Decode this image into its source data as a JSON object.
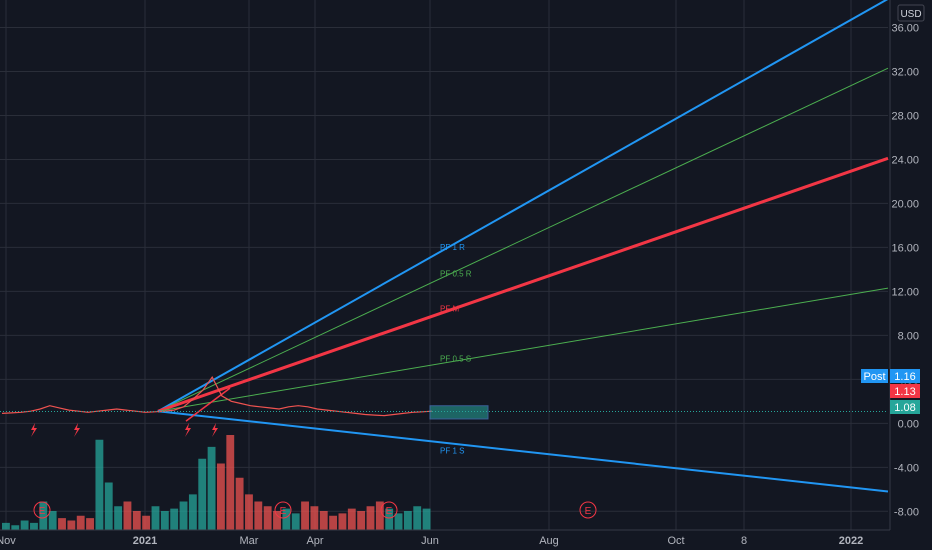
{
  "chart_data": {
    "type": "line",
    "currency": "USD",
    "y_axis": {
      "ticks": [
        -8,
        -4,
        0,
        4,
        8,
        12,
        16,
        20,
        24,
        28,
        32,
        36
      ],
      "tick_labels": [
        "-8.00",
        "-4.00",
        "0.00",
        "4.00",
        "8.00",
        "12.00",
        "16.00",
        "20.00",
        "24.00",
        "28.00",
        "32.00",
        "36.00"
      ],
      "ylim": [
        -9.7,
        38.5
      ]
    },
    "x_axis": {
      "labels": [
        "Nov",
        "2021",
        "Mar",
        "Apr",
        "Jun",
        "Aug",
        "Oct",
        "8",
        "2022"
      ],
      "bold_labels": [
        "2021",
        "2022"
      ]
    },
    "pitchfork": {
      "pivot": 1.1,
      "lines": [
        {
          "name": "PF 1 R",
          "color": "#2196f3",
          "end_value": 38.6,
          "width": 2
        },
        {
          "name": "PF 0.5 R",
          "color": "#4caf50",
          "end_value": 32.3,
          "width": 1
        },
        {
          "name": "PF M",
          "color": "#f23645",
          "end_value": 24.1,
          "width": 3
        },
        {
          "name": "PF 0.5 S",
          "color": "#4caf50",
          "end_value": 12.3,
          "width": 1
        },
        {
          "name": "PF 1 S",
          "color": "#2196f3",
          "end_value": -6.2,
          "width": 2
        }
      ]
    },
    "price_series_approx": [
      0.9,
      0.95,
      1.0,
      1.1,
      1.3,
      1.6,
      1.4,
      1.2,
      1.1,
      1.0,
      1.1,
      1.2,
      1.3,
      1.2,
      1.1,
      1.0,
      1.05,
      1.1,
      1.2,
      1.5,
      2.2,
      3.0,
      4.2,
      2.5,
      2.0,
      1.8,
      1.6,
      1.5,
      1.4,
      1.3,
      1.5,
      1.6,
      1.5,
      1.3,
      1.2,
      1.1,
      1.0,
      0.9,
      0.8,
      0.75,
      0.7,
      0.8,
      0.9,
      1.0,
      1.05,
      1.1
    ],
    "volume_series_approx": [
      3,
      2,
      4,
      3,
      12,
      8,
      5,
      4,
      6,
      5,
      38,
      20,
      10,
      12,
      8,
      6,
      10,
      8,
      9,
      12,
      15,
      30,
      35,
      28,
      40,
      22,
      15,
      12,
      10,
      8,
      9,
      7,
      12,
      10,
      8,
      6,
      7,
      9,
      8,
      10,
      12,
      9,
      7,
      8,
      10,
      9
    ],
    "earnings_markers": [
      "E",
      "E",
      "E",
      "E"
    ],
    "price_tags": [
      {
        "label": "Post",
        "value": "1.16",
        "color": "#2196f3"
      },
      {
        "label": "",
        "value": "1.13",
        "color": "#f23645"
      },
      {
        "label": "",
        "value": "1.08",
        "color": "#26a69a"
      }
    ],
    "colors": {
      "background": "#131722",
      "grid": "#2a2e39",
      "up": "#26a69a",
      "down": "#ef5350"
    }
  }
}
